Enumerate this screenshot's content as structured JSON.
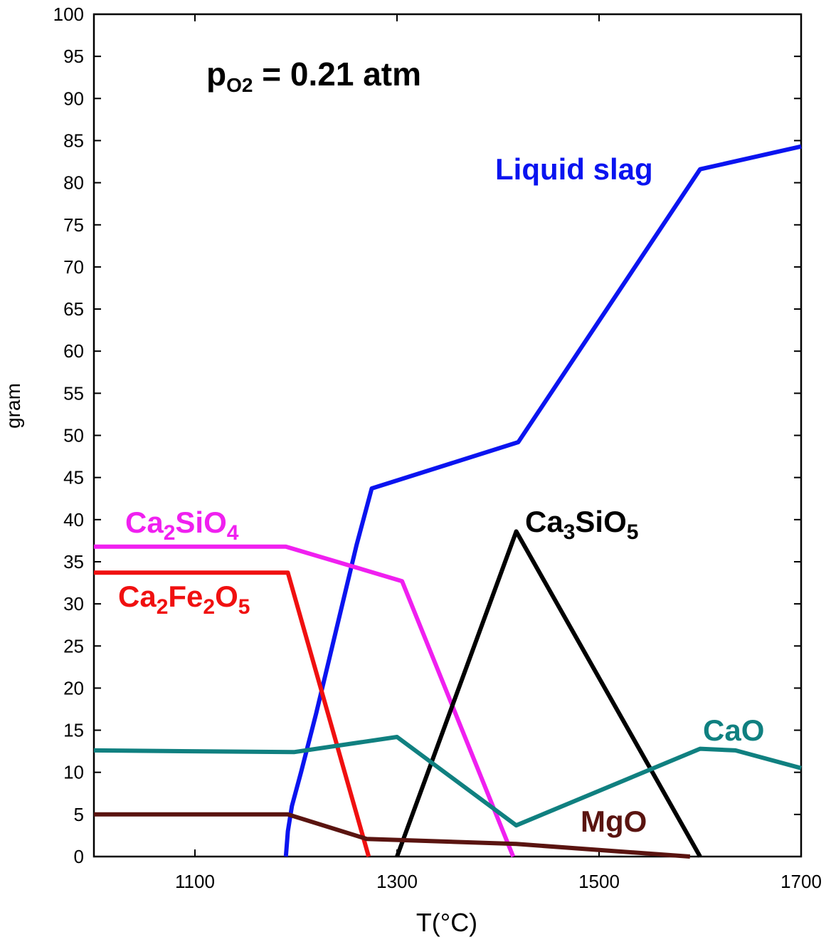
{
  "chart_data": {
    "type": "line",
    "title": "",
    "annotation": {
      "main": "p",
      "sub": "O2",
      "rest": " = 0.21 atm"
    },
    "xlabel": "T(°C)",
    "ylabel": "gram",
    "xlim": [
      1000,
      1700
    ],
    "ylim": [
      0,
      100
    ],
    "xticks": [
      1100,
      1300,
      1500,
      1700
    ],
    "yticks": [
      0,
      5,
      10,
      15,
      20,
      25,
      30,
      35,
      40,
      45,
      50,
      55,
      60,
      65,
      70,
      75,
      80,
      85,
      90,
      95,
      100
    ],
    "series": [
      {
        "name": "Liquid slag",
        "label_parts": [
          {
            "t": "Liquid slag"
          }
        ],
        "color": "#0a14f0",
        "x": [
          1190,
          1192,
          1196,
          1205,
          1220,
          1240,
          1260,
          1275,
          1420,
          1600,
          1700
        ],
        "y": [
          0,
          3,
          6,
          10,
          17,
          27,
          37,
          43.7,
          49.2,
          81.6,
          84.3
        ]
      },
      {
        "name": "Ca2SiO4",
        "label_parts": [
          {
            "t": "Ca"
          },
          {
            "t": "2",
            "sub": true
          },
          {
            "t": "SiO"
          },
          {
            "t": "4",
            "sub": true
          }
        ],
        "color": "#f020f0",
        "x": [
          1000,
          1190,
          1305,
          1415
        ],
        "y": [
          36.8,
          36.8,
          32.7,
          0
        ]
      },
      {
        "name": "Ca2Fe2O5",
        "label_parts": [
          {
            "t": "Ca"
          },
          {
            "t": "2",
            "sub": true
          },
          {
            "t": "Fe"
          },
          {
            "t": "2",
            "sub": true
          },
          {
            "t": "O"
          },
          {
            "t": "5",
            "sub": true
          }
        ],
        "color": "#f01010",
        "x": [
          1000,
          1192,
          1272
        ],
        "y": [
          33.7,
          33.7,
          0
        ]
      },
      {
        "name": "Ca3SiO5",
        "label_parts": [
          {
            "t": "Ca"
          },
          {
            "t": "3",
            "sub": true
          },
          {
            "t": "SiO"
          },
          {
            "t": "5",
            "sub": true
          }
        ],
        "color": "#000000",
        "x": [
          1300,
          1418,
          1600
        ],
        "y": [
          0,
          38.6,
          0
        ]
      },
      {
        "name": "CaO",
        "label_parts": [
          {
            "t": "CaO"
          }
        ],
        "color": "#108080",
        "x": [
          1000,
          1198,
          1300,
          1418,
          1600,
          1635,
          1700
        ],
        "y": [
          12.6,
          12.4,
          14.2,
          3.7,
          12.8,
          12.6,
          10.5
        ]
      },
      {
        "name": "MgO",
        "label_parts": [
          {
            "t": "MgO"
          }
        ],
        "color": "#5a1410",
        "x": [
          1000,
          1192,
          1270,
          1418,
          1590
        ],
        "y": [
          5.0,
          5.0,
          2.1,
          1.5,
          0
        ]
      }
    ]
  }
}
